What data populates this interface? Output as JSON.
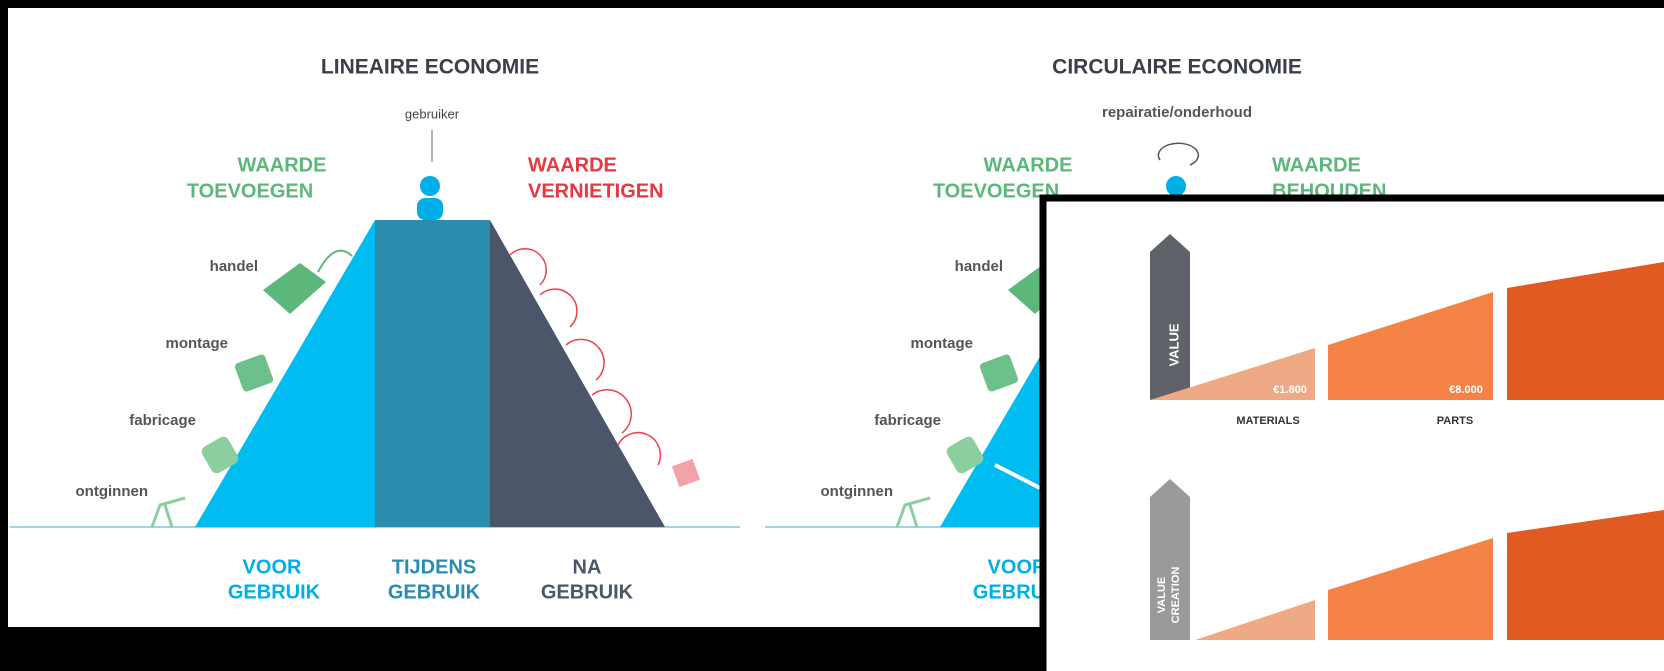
{
  "linear": {
    "title": "LINEAIRE ECONOMIE",
    "user": "gebruiker",
    "add_value": [
      "WAARDE",
      "TOEVOEGEN"
    ],
    "destroy_value": [
      "WAARDE",
      "VERNIETIGEN"
    ],
    "steps": [
      "handel",
      "montage",
      "fabricage",
      "ontginnen"
    ],
    "phases": [
      [
        "VOOR",
        "GEBRUIK"
      ],
      [
        "TIJDENS",
        "GEBRUIK"
      ],
      [
        "NA",
        "GEBRUIK"
      ]
    ]
  },
  "circular": {
    "title": "CIRCULAIRE ECONOMIE",
    "user": "repairatie/onderhoud",
    "add_value": [
      "WAARDE",
      "TOEVOEGEN"
    ],
    "keep_value": [
      "WAARDE",
      "BEHOUDEN"
    ],
    "steps": [
      "handel",
      "montage",
      "fabricage",
      "ontginnen"
    ],
    "phases": [
      [
        "VOOR",
        "GEBRUIK"
      ]
    ]
  },
  "overlay": {
    "value_axis": "VALUE",
    "value_creation_axis": [
      "VALUE",
      "CREATION"
    ],
    "price_labels": [
      "€1.800",
      "€8.000"
    ],
    "stages": [
      "MATERIALS",
      "PARTS"
    ]
  }
}
